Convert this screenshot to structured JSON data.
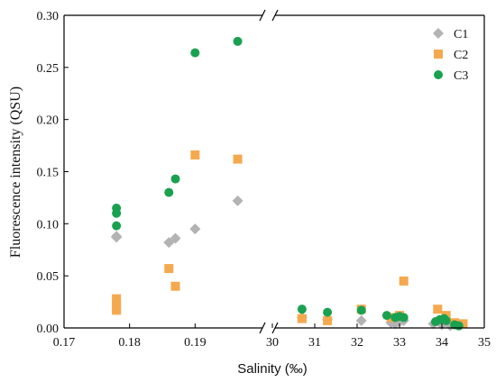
{
  "chart_data": {
    "type": "scatter",
    "xlabel": "Salinity (‰)",
    "ylabel": "Fluorescence intensity (QSU)",
    "ylim": [
      0,
      0.3
    ],
    "y_ticks": [
      "0.00",
      "0.05",
      "0.10",
      "0.15",
      "0.20",
      "0.25",
      "0.30"
    ],
    "x_axis_break": true,
    "x_segments": [
      {
        "range": [
          0.17,
          0.2
        ],
        "ticks": [
          "0.17",
          "0.18",
          "0.19"
        ]
      },
      {
        "range": [
          30,
          35
        ],
        "ticks": [
          "30",
          "31",
          "32",
          "33",
          "34",
          "35"
        ]
      }
    ],
    "legend_position": "top-right",
    "series": [
      {
        "name": "C1",
        "marker": "diamond",
        "color": "#b3b3b3",
        "points": [
          [
            0.178,
            0.088
          ],
          [
            0.178,
            0.087
          ],
          [
            0.186,
            0.082
          ],
          [
            0.187,
            0.086
          ],
          [
            0.19,
            0.095
          ],
          [
            0.1965,
            0.122
          ],
          [
            30.7,
            0.01
          ],
          [
            31.3,
            0.008
          ],
          [
            32.1,
            0.007
          ],
          [
            32.8,
            0.005
          ],
          [
            32.9,
            0.004
          ],
          [
            33.0,
            0.006
          ],
          [
            33.1,
            0.007
          ],
          [
            33.8,
            0.004
          ],
          [
            34.0,
            0.003
          ],
          [
            34.2,
            0.002
          ],
          [
            34.4,
            0.003
          ]
        ]
      },
      {
        "name": "C2",
        "marker": "square",
        "color": "#f5a94e",
        "points": [
          [
            0.178,
            0.028
          ],
          [
            0.178,
            0.023
          ],
          [
            0.178,
            0.019
          ],
          [
            0.178,
            0.017
          ],
          [
            0.186,
            0.057
          ],
          [
            0.187,
            0.04
          ],
          [
            0.19,
            0.166
          ],
          [
            0.1965,
            0.162
          ],
          [
            30.7,
            0.009
          ],
          [
            31.3,
            0.007
          ],
          [
            32.1,
            0.018
          ],
          [
            32.8,
            0.01
          ],
          [
            33.0,
            0.012
          ],
          [
            33.1,
            0.045
          ],
          [
            33.9,
            0.018
          ],
          [
            34.1,
            0.012
          ],
          [
            34.3,
            0.005
          ],
          [
            34.5,
            0.004
          ]
        ]
      },
      {
        "name": "C3",
        "marker": "circle",
        "color": "#1aa150",
        "points": [
          [
            0.178,
            0.115
          ],
          [
            0.178,
            0.11
          ],
          [
            0.178,
            0.098
          ],
          [
            0.186,
            0.13
          ],
          [
            0.187,
            0.143
          ],
          [
            0.19,
            0.264
          ],
          [
            0.1965,
            0.275
          ],
          [
            30.7,
            0.018
          ],
          [
            31.3,
            0.015
          ],
          [
            32.1,
            0.017
          ],
          [
            32.7,
            0.012
          ],
          [
            32.9,
            0.01
          ],
          [
            33.0,
            0.011
          ],
          [
            33.1,
            0.01
          ],
          [
            33.85,
            0.006
          ],
          [
            33.95,
            0.008
          ],
          [
            34.05,
            0.009
          ],
          [
            34.1,
            0.007
          ],
          [
            34.3,
            0.003
          ],
          [
            34.4,
            0.002
          ]
        ]
      }
    ]
  }
}
